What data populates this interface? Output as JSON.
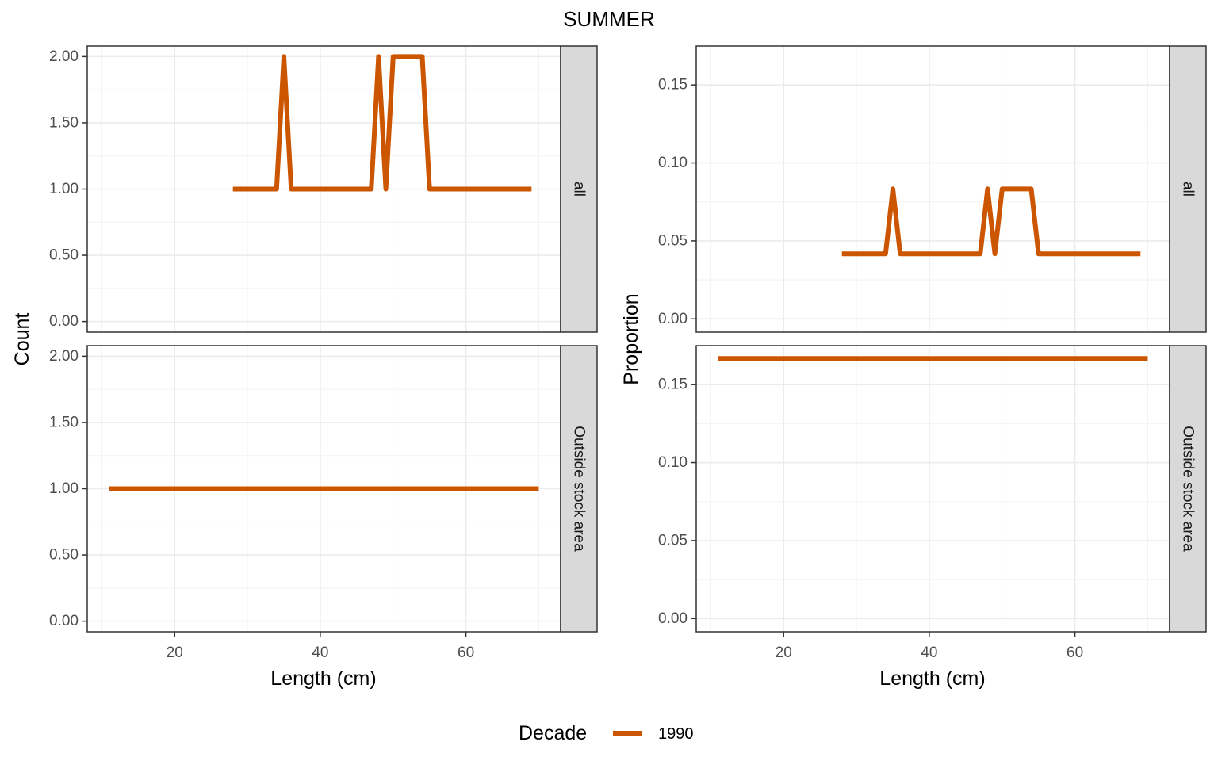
{
  "title": "SUMMER",
  "legend": {
    "title": "Decade",
    "entries": [
      {
        "label": "1990",
        "color": "#CC5500"
      }
    ]
  },
  "chart_data": [
    {
      "type": "line",
      "facet": "all",
      "xlabel": "Length (cm)",
      "ylabel": "Count",
      "xlim": [
        8,
        73
      ],
      "ylim": [
        -0.08,
        2.08
      ],
      "xticks": [
        20,
        40,
        60
      ],
      "yticks": [
        0,
        0.5,
        1,
        1.5,
        2
      ],
      "ytick_labels": [
        "0.00",
        "0.50",
        "1.00",
        "1.50",
        "2.00"
      ],
      "grid": true,
      "series": [
        {
          "name": "1990",
          "color": "#CC5500",
          "x": [
            28,
            34,
            35,
            36,
            47,
            48,
            49,
            50,
            54,
            55,
            69
          ],
          "y": [
            1,
            1,
            2,
            1,
            1,
            2,
            1,
            2,
            2,
            1,
            1
          ]
        }
      ]
    },
    {
      "type": "line",
      "facet": "Outside stock area",
      "xlabel": "Length (cm)",
      "ylabel": "Count",
      "xlim": [
        8,
        73
      ],
      "ylim": [
        -0.08,
        2.08
      ],
      "xticks": [
        20,
        40,
        60
      ],
      "yticks": [
        0,
        0.5,
        1,
        1.5,
        2
      ],
      "ytick_labels": [
        "0.00",
        "0.50",
        "1.00",
        "1.50",
        "2.00"
      ],
      "grid": true,
      "series": [
        {
          "name": "1990",
          "color": "#CC5500",
          "x": [
            11,
            70
          ],
          "y": [
            1,
            1
          ]
        }
      ]
    },
    {
      "type": "line",
      "facet": "all",
      "xlabel": "Length (cm)",
      "ylabel": "Proportion",
      "xlim": [
        8,
        73
      ],
      "ylim": [
        -0.0085,
        0.175
      ],
      "xticks": [
        20,
        40,
        60
      ],
      "yticks": [
        0,
        0.05,
        0.1,
        0.15
      ],
      "ytick_labels": [
        "0.00",
        "0.05",
        "0.10",
        "0.15"
      ],
      "grid": true,
      "series": [
        {
          "name": "1990",
          "color": "#CC5500",
          "x": [
            28,
            34,
            35,
            36,
            47,
            48,
            49,
            50,
            54,
            55,
            69
          ],
          "y": [
            0.0417,
            0.0417,
            0.0833,
            0.0417,
            0.0417,
            0.0833,
            0.0417,
            0.0833,
            0.0833,
            0.0417,
            0.0417
          ]
        }
      ]
    },
    {
      "type": "line",
      "facet": "Outside stock area",
      "xlabel": "Length (cm)",
      "ylabel": "Proportion",
      "xlim": [
        8,
        73
      ],
      "ylim": [
        -0.0085,
        0.175
      ],
      "xticks": [
        20,
        40,
        60
      ],
      "yticks": [
        0,
        0.05,
        0.1,
        0.15
      ],
      "ytick_labels": [
        "0.00",
        "0.05",
        "0.10",
        "0.15"
      ],
      "grid": true,
      "series": [
        {
          "name": "1990",
          "color": "#CC5500",
          "x": [
            11,
            70
          ],
          "y": [
            0.1667,
            0.1667
          ]
        }
      ]
    }
  ]
}
